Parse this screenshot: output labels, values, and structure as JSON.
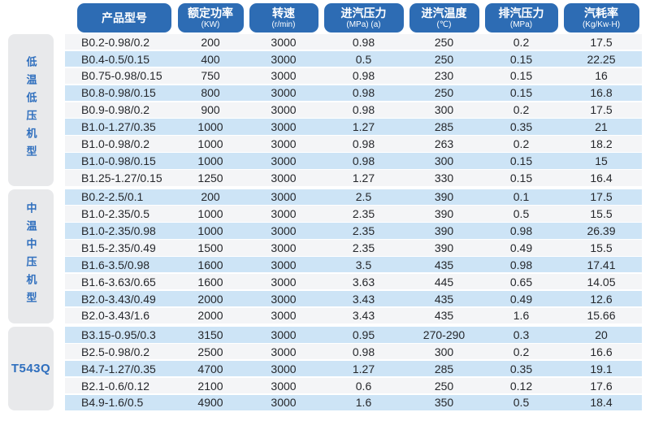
{
  "colors": {
    "header_bg": "#2d6cb4",
    "header_text": "#ffffff",
    "stripe_blue": "#cde4f6",
    "stripe_light": "#f4f5f7",
    "group_box_bg": "#e8e9eb",
    "group_text": "#2f6fbe",
    "cell_text": "#25272b"
  },
  "table": {
    "columns": [
      {
        "label": "产品型号",
        "unit": ""
      },
      {
        "label": "额定功率",
        "unit": "(KW)"
      },
      {
        "label": "转速",
        "unit": "(r/min)"
      },
      {
        "label": "进汽压力",
        "unit": "(MPa) (a)"
      },
      {
        "label": "进汽温度",
        "unit": "(℃)"
      },
      {
        "label": "排汽压力",
        "unit": "(MPa)"
      },
      {
        "label": "汽耗率",
        "unit": "(Kg/Kw·H)"
      }
    ],
    "groups": [
      {
        "label": "低温低压机型",
        "rows": [
          [
            "B0.2-0.98/0.2",
            "200",
            "3000",
            "0.98",
            "250",
            "0.2",
            "17.5"
          ],
          [
            "B0.4-0.5/0.15",
            "400",
            "3000",
            "0.5",
            "250",
            "0.15",
            "22.25"
          ],
          [
            "B0.75-0.98/0.15",
            "750",
            "3000",
            "0.98",
            "230",
            "0.15",
            "16"
          ],
          [
            "B0.8-0.98/0.15",
            "800",
            "3000",
            "0.98",
            "250",
            "0.15",
            "16.8"
          ],
          [
            "B0.9-0.98/0.2",
            "900",
            "3000",
            "0.98",
            "300",
            "0.2",
            "17.5"
          ],
          [
            "B1.0-1.27/0.35",
            "1000",
            "3000",
            "1.27",
            "285",
            "0.35",
            "21"
          ],
          [
            "B1.0-0.98/0.2",
            "1000",
            "3000",
            "0.98",
            "263",
            "0.2",
            "18.2"
          ],
          [
            "B1.0-0.98/0.15",
            "1000",
            "3000",
            "0.98",
            "300",
            "0.15",
            "15"
          ],
          [
            "B1.25-1.27/0.15",
            "1250",
            "3000",
            "1.27",
            "330",
            "0.15",
            "16.4"
          ]
        ]
      },
      {
        "label": "中温中压机型",
        "rows": [
          [
            "B0.2-2.5/0.1",
            "200",
            "3000",
            "2.5",
            "390",
            "0.1",
            "17.5"
          ],
          [
            "B1.0-2.35/0.5",
            "1000",
            "3000",
            "2.35",
            "390",
            "0.5",
            "15.5"
          ],
          [
            "B1.0-2.35/0.98",
            "1000",
            "3000",
            "2.35",
            "390",
            "0.98",
            "26.39"
          ],
          [
            "B1.5-2.35/0.49",
            "1500",
            "3000",
            "2.35",
            "390",
            "0.49",
            "15.5"
          ],
          [
            "B1.6-3.5/0.98",
            "1600",
            "3000",
            "3.5",
            "435",
            "0.98",
            "17.41"
          ],
          [
            "B1.6-3.63/0.65",
            "1600",
            "3000",
            "3.63",
            "445",
            "0.65",
            "14.05"
          ],
          [
            "B2.0-3.43/0.49",
            "2000",
            "3000",
            "3.43",
            "435",
            "0.49",
            "12.6"
          ],
          [
            "B2.0-3.43/1.6",
            "2000",
            "3000",
            "3.43",
            "435",
            "1.6",
            "15.66"
          ]
        ]
      },
      {
        "label": "T543Q",
        "rows": [
          [
            "B3.15-0.95/0.3",
            "3150",
            "3000",
            "0.95",
            "270-290",
            "0.3",
            "20"
          ],
          [
            "B2.5-0.98/0.2",
            "2500",
            "3000",
            "0.98",
            "300",
            "0.2",
            "16.6"
          ],
          [
            "B4.7-1.27/0.35",
            "4700",
            "3000",
            "1.27",
            "285",
            "0.35",
            "19.1"
          ],
          [
            "B2.1-0.6/0.12",
            "2100",
            "3000",
            "0.6",
            "250",
            "0.12",
            "17.6"
          ],
          [
            "B4.9-1.6/0.5",
            "4900",
            "3000",
            "1.6",
            "350",
            "0.5",
            "18.4"
          ]
        ]
      }
    ]
  }
}
